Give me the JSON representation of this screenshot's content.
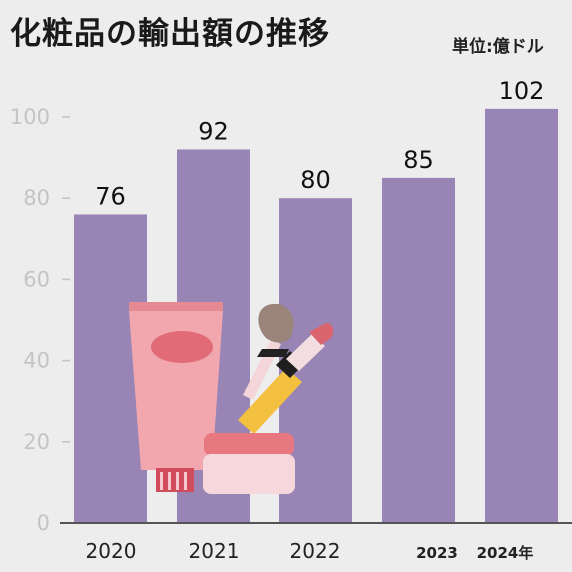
{
  "header": {
    "title": "化粧品の輸出額の推移",
    "unit": "単位:億ドル"
  },
  "chart_data": {
    "type": "bar",
    "title": "化粧品の輸出額の推移",
    "unit_label": "単位:億ドル",
    "xlabel": "",
    "ylabel": "",
    "categories": [
      "2020",
      "2021",
      "2022",
      "2023",
      "2024年"
    ],
    "values": [
      76,
      92,
      80,
      85,
      102
    ],
    "data_labels": [
      "76",
      "92",
      "80",
      "85",
      "102"
    ],
    "ylim": [
      0,
      100
    ],
    "yticks": [
      "0",
      "20",
      "40",
      "60",
      "80",
      "100"
    ],
    "grid": false,
    "legend": "none",
    "colors": {
      "bar": "#9885b5",
      "axis": "#555555",
      "tick_label": "#c4c4c4",
      "data_label": "#111111",
      "background": "#ededed"
    },
    "decoration": "cosmetics-illustration"
  }
}
